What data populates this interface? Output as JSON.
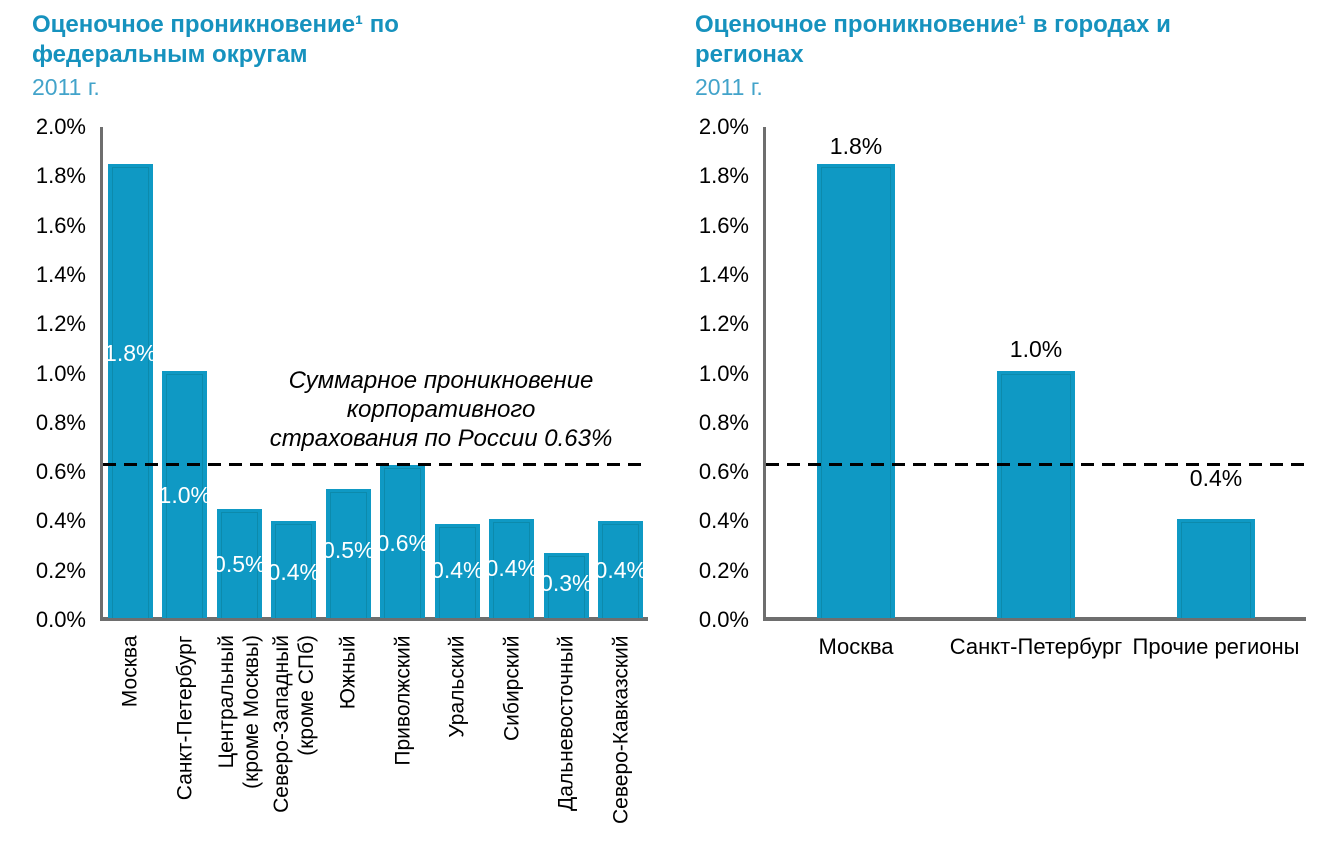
{
  "colors": {
    "bar_fill": "#0F99C4",
    "title_text": "#1692BE",
    "subtitle_text": "#42A3CA",
    "axis_line": "#6e6e6e",
    "tick_text": "#000000",
    "in_bar_label": "#ffffff",
    "reference_line": "#000000",
    "background": "#ffffff"
  },
  "chart_data": [
    {
      "type": "bar",
      "title": "Оценочное проникновение¹ по федеральным округам",
      "subtitle": "2011 г.",
      "categories": [
        "Москва",
        "Санкт-Петербург",
        "Центральный\n(кроме Москвы)",
        "Северо-Западный\n(кроме СПб)",
        "Южный",
        "Приволжский",
        "Уральский",
        "Сибирский",
        "Дальневосточный",
        "Северо-Кавказский"
      ],
      "values": [
        1.8,
        1.0,
        0.5,
        0.4,
        0.5,
        0.6,
        0.4,
        0.4,
        0.3,
        0.4
      ],
      "value_labels": [
        "1.8%",
        "1.0%",
        "0.5%",
        "0.4%",
        "0.5%",
        "0.6%",
        "0.4%",
        "0.4%",
        "0.3%",
        "0.4%"
      ],
      "drawn_heights": [
        1.85,
        1.01,
        0.45,
        0.4,
        0.53,
        0.63,
        0.39,
        0.41,
        0.27,
        0.4
      ],
      "label_placement": "inside",
      "y_ticks": [
        "2.0%",
        "1.8%",
        "1.6%",
        "1.4%",
        "1.2%",
        "1.0%",
        "0.8%",
        "0.6%",
        "0.4%",
        "0.2%",
        "0.0%"
      ],
      "ylim": [
        0,
        2.0
      ],
      "x_label_rotation": -90,
      "grid": false,
      "reference_line": {
        "value": 0.63,
        "style": "dashed",
        "annotation": "Суммарное проникновение корпоративного страхования по России 0.63%",
        "annotation_lines": [
          "Суммарное проникновение",
          "корпоративного",
          "страхования по России 0.63%"
        ]
      }
    },
    {
      "type": "bar",
      "title": "Оценочное проникновение¹ в городах и регионах",
      "subtitle": "2011 г.",
      "categories": [
        "Москва",
        "Санкт-Петербург",
        "Прочие регионы"
      ],
      "values": [
        1.8,
        1.0,
        0.4
      ],
      "value_labels": [
        "1.8%",
        "1.0%",
        "0.4%"
      ],
      "drawn_heights": [
        1.85,
        1.01,
        0.41
      ],
      "label_placement": "above",
      "y_ticks": [
        "2.0%",
        "1.8%",
        "1.6%",
        "1.4%",
        "1.2%",
        "1.0%",
        "0.8%",
        "0.6%",
        "0.4%",
        "0.2%",
        "0.0%"
      ],
      "ylim": [
        0,
        2.0
      ],
      "x_label_rotation": 0,
      "grid": false,
      "reference_line": {
        "value": 0.63,
        "style": "dashed"
      }
    }
  ]
}
